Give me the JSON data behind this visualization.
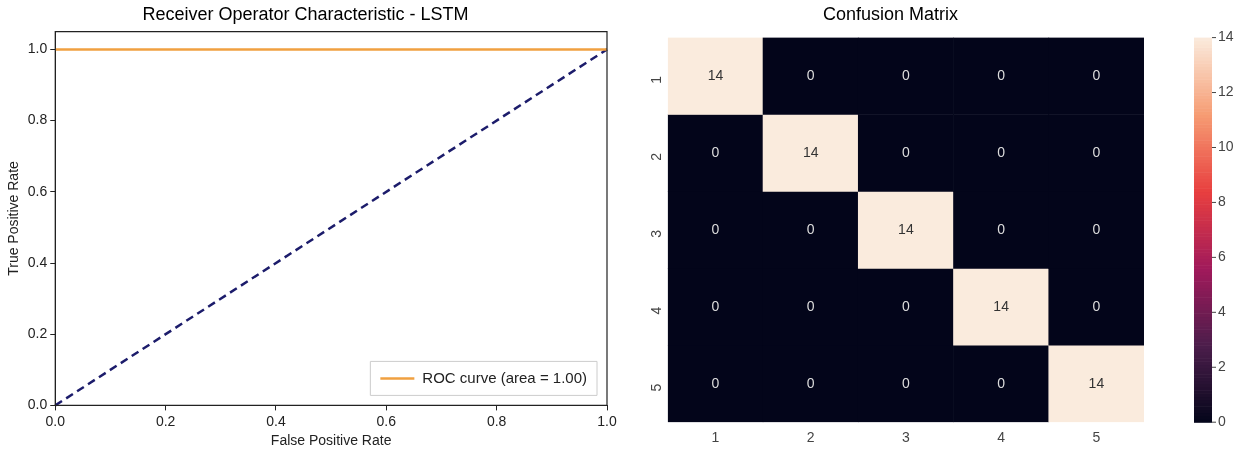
{
  "chart_data": [
    {
      "type": "line",
      "title": "Receiver Operator Characteristic - LSTM",
      "xlabel": "False Positive Rate",
      "ylabel": "True Positive Rate",
      "series": [
        {
          "name": "ROC curve (area = 1.00)",
          "color": "#f0a040",
          "values": [
            1,
            1
          ]
        },
        {
          "color": "#1c1c6b",
          "values": [
            0,
            1
          ],
          "line_style": "dashed"
        }
      ],
      "x": [
        0,
        1
      ],
      "xlim": [
        0,
        1
      ],
      "ylim": [
        0,
        1.05
      ],
      "xticks": [
        {
          "value": 0,
          "label": "0.0"
        },
        0.2,
        0.4,
        0.6,
        0.8,
        {
          "value": 1,
          "label": "1.0"
        }
      ],
      "yticks": [
        {
          "value": 0,
          "label": "0.0"
        },
        0.2,
        0.4,
        0.6,
        0.8,
        {
          "value": 1,
          "label": "1.0"
        }
      ],
      "grid": false,
      "legend": "bottom right",
      "marker": "none",
      "line_style": "solid"
    },
    {
      "type": "heatmap",
      "title": "Confusion Matrix",
      "categories": [
        "1",
        "2",
        "3",
        "4",
        "5"
      ],
      "y_categories": [
        "1",
        "2",
        "3",
        "4",
        "5"
      ],
      "cells": [
        [
          14,
          0,
          0,
          0,
          0
        ],
        [
          0,
          14,
          0,
          0,
          0
        ],
        [
          0,
          0,
          14,
          0,
          0
        ],
        [
          0,
          0,
          0,
          14,
          0
        ],
        [
          0,
          0,
          0,
          0,
          14
        ]
      ],
      "clim": [
        0,
        14
      ],
      "cticks": [
        0,
        2,
        4,
        6,
        8,
        10,
        12,
        14
      ],
      "data_labels": true
    }
  ]
}
